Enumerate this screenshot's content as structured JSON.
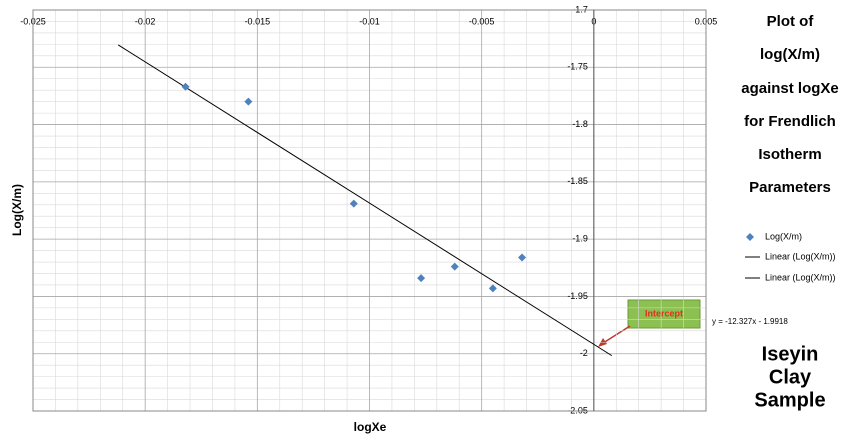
{
  "chart_data": {
    "type": "scatter",
    "title": [
      "Plot of",
      "log(X/m)",
      "against logXe",
      "for Frendlich",
      "Isotherm",
      "Parameters"
    ],
    "x_label": "logXe",
    "y_label": "Log(X/m)",
    "sample_label": [
      "Iseyin",
      "Clay",
      "Sample"
    ],
    "xlim": [
      -0.025,
      0.005
    ],
    "ylim": [
      -2.05,
      -1.7
    ],
    "xticks": [
      -0.025,
      -0.02,
      -0.015,
      -0.01,
      -0.005,
      0,
      0.005
    ],
    "yticks": [
      -1.7,
      -1.75,
      -1.8,
      -1.85,
      -1.9,
      -1.95,
      -2,
      -2.05
    ],
    "grid": true,
    "series": [
      {
        "name": "Log(X/m)",
        "color": "#4f81bd",
        "x": [
          -0.0182,
          -0.0154,
          -0.0107,
          -0.0077,
          -0.0062,
          -0.0045,
          -0.0032
        ],
        "values": [
          -1.767,
          -1.78,
          -1.869,
          -1.934,
          -1.924,
          -1.943,
          -1.916
        ]
      }
    ],
    "trendline": {
      "legend": [
        "Linear (Log(X/m))",
        "Linear (Log(X/m))"
      ],
      "color": "#000000",
      "slope": -12.327,
      "intercept": -1.9918,
      "x_from": -0.0212,
      "x_to": 0.0008,
      "equation": "y = -12.327x - 1.9918"
    },
    "annotation": "Intercept"
  }
}
